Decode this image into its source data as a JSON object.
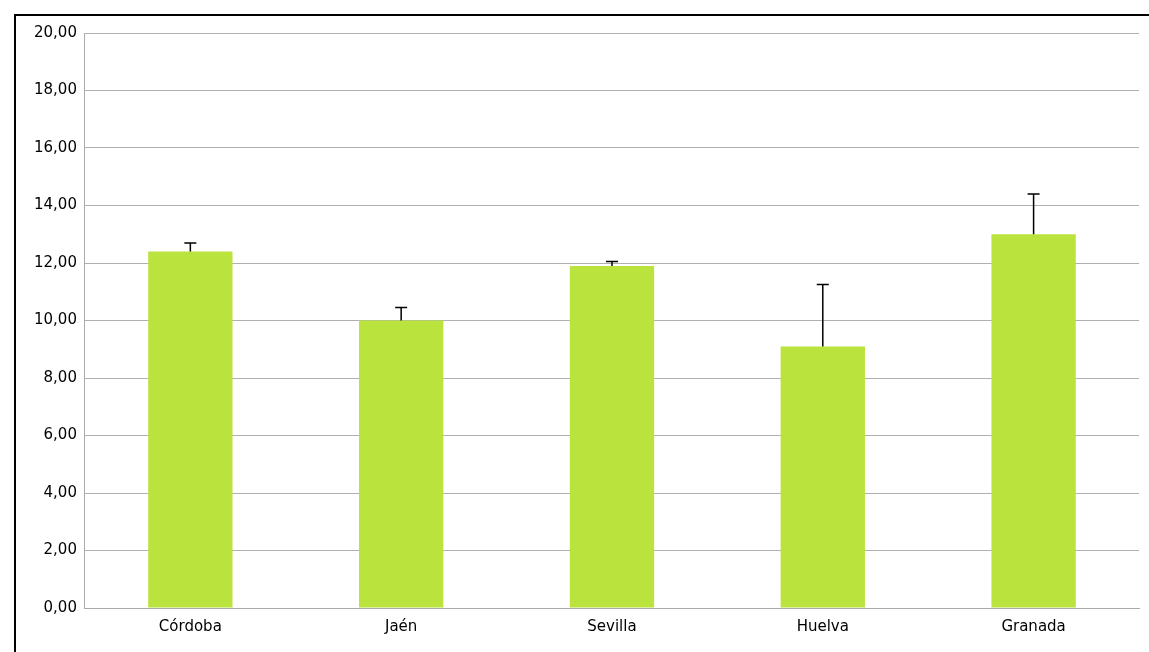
{
  "chart_data": {
    "type": "bar",
    "categories": [
      "Córdoba",
      "Jaén",
      "Sevilla",
      "Huelva",
      "Granada"
    ],
    "values": [
      12.4,
      10.0,
      11.9,
      9.1,
      13.0
    ],
    "color": "#bbe33d",
    "errors": [
      [
        12.4,
        12.7
      ],
      [
        10.0,
        10.45
      ],
      [
        11.9,
        12.05
      ],
      [
        9.1,
        11.25
      ],
      [
        13.0,
        14.4
      ]
    ],
    "ylim": [
      0,
      20
    ],
    "yticks": [
      {
        "value": 0,
        "label": "0,00"
      },
      {
        "value": 2,
        "label": "2,00"
      },
      {
        "value": 4,
        "label": "4,00"
      },
      {
        "value": 6,
        "label": "6,00"
      },
      {
        "value": 8,
        "label": "8,00"
      },
      {
        "value": 10,
        "label": "10,00"
      },
      {
        "value": 12,
        "label": "12,00"
      },
      {
        "value": 14,
        "label": "14,00"
      },
      {
        "value": 16,
        "label": "16,00"
      },
      {
        "value": 18,
        "label": "18,00"
      },
      {
        "value": 20,
        "label": "20,00"
      }
    ],
    "grid": "y",
    "legend": false
  }
}
